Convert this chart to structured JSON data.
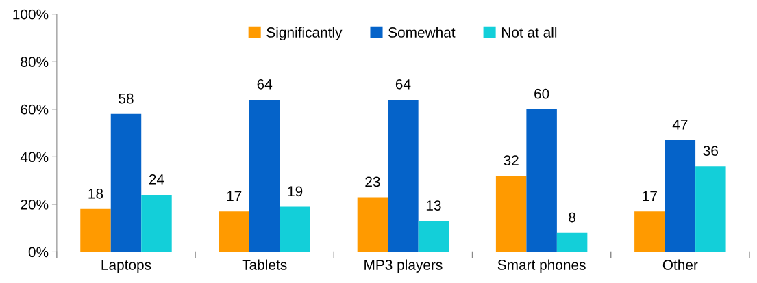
{
  "chart_data": {
    "type": "bar",
    "categories": [
      "Laptops",
      "Tablets",
      "MP3 players",
      "Smart phones",
      "Other"
    ],
    "series": [
      {
        "name": "Significantly",
        "color": "#ff9a00",
        "values": [
          18,
          17,
          23,
          32,
          17
        ]
      },
      {
        "name": "Somewhat",
        "color": "#0563c9",
        "values": [
          58,
          64,
          64,
          60,
          47
        ]
      },
      {
        "name": "Not at all",
        "color": "#13cfd9",
        "values": [
          24,
          19,
          13,
          8,
          36
        ]
      }
    ],
    "ylim": [
      0,
      100
    ],
    "yticks": [
      {
        "value": 0,
        "label": "0%"
      },
      {
        "value": 20,
        "label": "20%"
      },
      {
        "value": 40,
        "label": "40%"
      },
      {
        "value": 60,
        "label": "60%"
      },
      {
        "value": 80,
        "label": "80%"
      },
      {
        "value": 100,
        "label": "100%"
      }
    ],
    "data_labels": true,
    "grid": false,
    "legend": "top"
  }
}
